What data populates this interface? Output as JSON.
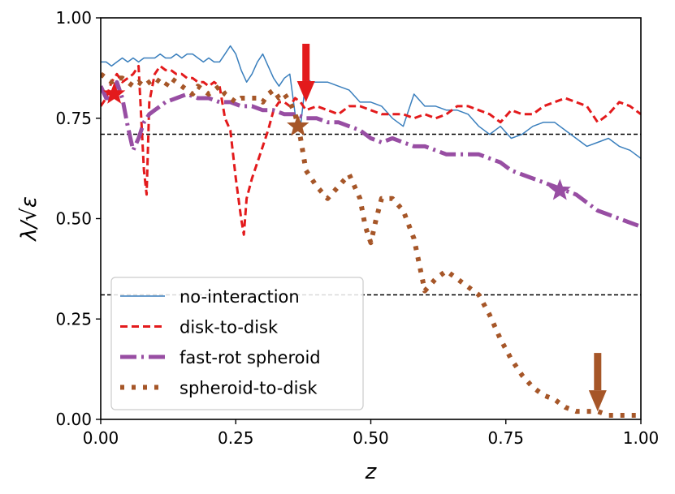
{
  "chart_data": {
    "type": "line",
    "xlabel": "z",
    "ylabel": "λ/√ε",
    "xlim": [
      0.0,
      1.0
    ],
    "ylim": [
      0.0,
      1.0
    ],
    "xticks": [
      "0.00",
      "0.25",
      "0.50",
      "0.75",
      "1.00"
    ],
    "yticks": [
      "0.00",
      "0.25",
      "0.50",
      "0.75",
      "1.00"
    ],
    "hlines": [
      0.71,
      0.31
    ],
    "legend_position": "lower-left",
    "series": [
      {
        "name": "no-interaction",
        "color": "#3a7fbd",
        "style": "solid",
        "x": [
          0.0,
          0.01,
          0.02,
          0.03,
          0.04,
          0.05,
          0.06,
          0.07,
          0.08,
          0.09,
          0.1,
          0.11,
          0.12,
          0.13,
          0.14,
          0.15,
          0.16,
          0.17,
          0.18,
          0.19,
          0.2,
          0.21,
          0.22,
          0.23,
          0.24,
          0.25,
          0.26,
          0.27,
          0.28,
          0.29,
          0.3,
          0.31,
          0.32,
          0.33,
          0.34,
          0.35,
          0.36,
          0.37,
          0.38,
          0.39,
          0.4,
          0.42,
          0.44,
          0.46,
          0.48,
          0.5,
          0.52,
          0.54,
          0.56,
          0.58,
          0.6,
          0.62,
          0.64,
          0.66,
          0.68,
          0.7,
          0.72,
          0.74,
          0.76,
          0.78,
          0.8,
          0.82,
          0.84,
          0.86,
          0.88,
          0.9,
          0.92,
          0.94,
          0.96,
          0.98,
          1.0
        ],
        "y": [
          0.89,
          0.89,
          0.88,
          0.89,
          0.9,
          0.89,
          0.9,
          0.89,
          0.9,
          0.9,
          0.9,
          0.91,
          0.9,
          0.9,
          0.91,
          0.9,
          0.91,
          0.91,
          0.9,
          0.89,
          0.9,
          0.89,
          0.89,
          0.91,
          0.93,
          0.91,
          0.87,
          0.84,
          0.86,
          0.89,
          0.91,
          0.88,
          0.85,
          0.83,
          0.85,
          0.86,
          0.76,
          0.73,
          0.85,
          0.84,
          0.84,
          0.84,
          0.83,
          0.82,
          0.79,
          0.79,
          0.78,
          0.75,
          0.73,
          0.81,
          0.78,
          0.78,
          0.77,
          0.77,
          0.76,
          0.73,
          0.71,
          0.73,
          0.7,
          0.71,
          0.73,
          0.74,
          0.74,
          0.72,
          0.7,
          0.68,
          0.69,
          0.7,
          0.68,
          0.67,
          0.65
        ]
      },
      {
        "name": "disk-to-disk",
        "color": "#e31a1c",
        "style": "dashed",
        "x": [
          0.0,
          0.01,
          0.02,
          0.03,
          0.04,
          0.05,
          0.06,
          0.07,
          0.08,
          0.085,
          0.09,
          0.1,
          0.11,
          0.12,
          0.13,
          0.14,
          0.15,
          0.16,
          0.17,
          0.18,
          0.19,
          0.2,
          0.21,
          0.22,
          0.23,
          0.24,
          0.25,
          0.26,
          0.265,
          0.27,
          0.28,
          0.29,
          0.3,
          0.31,
          0.32,
          0.33,
          0.34,
          0.35,
          0.36,
          0.37,
          0.38,
          0.4,
          0.42,
          0.44,
          0.46,
          0.48,
          0.5,
          0.52,
          0.54,
          0.56,
          0.58,
          0.6,
          0.62,
          0.64,
          0.66,
          0.68,
          0.7,
          0.72,
          0.74,
          0.76,
          0.78,
          0.8,
          0.82,
          0.84,
          0.86,
          0.88,
          0.9,
          0.92,
          0.94,
          0.96,
          0.98,
          1.0
        ],
        "y": [
          0.78,
          0.8,
          0.84,
          0.86,
          0.84,
          0.85,
          0.86,
          0.88,
          0.62,
          0.56,
          0.79,
          0.86,
          0.88,
          0.87,
          0.87,
          0.86,
          0.86,
          0.85,
          0.85,
          0.84,
          0.84,
          0.83,
          0.84,
          0.83,
          0.75,
          0.72,
          0.6,
          0.5,
          0.46,
          0.55,
          0.6,
          0.64,
          0.68,
          0.72,
          0.77,
          0.79,
          0.79,
          0.78,
          0.8,
          0.79,
          0.77,
          0.78,
          0.77,
          0.76,
          0.78,
          0.78,
          0.77,
          0.76,
          0.76,
          0.76,
          0.75,
          0.76,
          0.75,
          0.76,
          0.78,
          0.78,
          0.77,
          0.76,
          0.74,
          0.77,
          0.76,
          0.76,
          0.78,
          0.79,
          0.8,
          0.79,
          0.78,
          0.74,
          0.76,
          0.79,
          0.78,
          0.76
        ]
      },
      {
        "name": "fast-rot spheroid",
        "color": "#984ea3",
        "style": "dashdot",
        "x": [
          0.0,
          0.01,
          0.02,
          0.03,
          0.04,
          0.05,
          0.06,
          0.07,
          0.08,
          0.09,
          0.1,
          0.11,
          0.12,
          0.14,
          0.16,
          0.18,
          0.2,
          0.22,
          0.24,
          0.26,
          0.28,
          0.3,
          0.32,
          0.34,
          0.36,
          0.38,
          0.4,
          0.42,
          0.44,
          0.46,
          0.48,
          0.5,
          0.52,
          0.54,
          0.56,
          0.58,
          0.6,
          0.62,
          0.64,
          0.66,
          0.68,
          0.7,
          0.72,
          0.74,
          0.76,
          0.78,
          0.8,
          0.82,
          0.84,
          0.86,
          0.88,
          0.9,
          0.92,
          0.94,
          0.96,
          0.98,
          1.0
        ],
        "y": [
          0.83,
          0.8,
          0.8,
          0.84,
          0.8,
          0.73,
          0.67,
          0.7,
          0.74,
          0.76,
          0.77,
          0.78,
          0.79,
          0.8,
          0.81,
          0.8,
          0.8,
          0.79,
          0.79,
          0.78,
          0.78,
          0.77,
          0.77,
          0.76,
          0.76,
          0.75,
          0.75,
          0.74,
          0.74,
          0.73,
          0.72,
          0.7,
          0.69,
          0.7,
          0.69,
          0.68,
          0.68,
          0.67,
          0.66,
          0.66,
          0.66,
          0.66,
          0.65,
          0.64,
          0.62,
          0.61,
          0.6,
          0.59,
          0.58,
          0.57,
          0.56,
          0.54,
          0.52,
          0.51,
          0.5,
          0.49,
          0.48
        ]
      },
      {
        "name": "spheroid-to-disk",
        "color": "#a65628",
        "style": "dotted",
        "x": [
          0.0,
          0.01,
          0.02,
          0.03,
          0.04,
          0.05,
          0.06,
          0.07,
          0.08,
          0.09,
          0.1,
          0.11,
          0.12,
          0.13,
          0.14,
          0.15,
          0.16,
          0.17,
          0.18,
          0.19,
          0.2,
          0.21,
          0.22,
          0.23,
          0.24,
          0.25,
          0.26,
          0.27,
          0.28,
          0.29,
          0.3,
          0.31,
          0.32,
          0.33,
          0.34,
          0.35,
          0.36,
          0.37,
          0.38,
          0.4,
          0.42,
          0.44,
          0.46,
          0.48,
          0.49,
          0.5,
          0.51,
          0.52,
          0.54,
          0.56,
          0.58,
          0.6,
          0.62,
          0.64,
          0.66,
          0.68,
          0.7,
          0.72,
          0.74,
          0.76,
          0.78,
          0.8,
          0.82,
          0.84,
          0.86,
          0.88,
          0.9,
          0.92,
          0.94,
          0.96,
          0.98,
          1.0
        ],
        "y": [
          0.86,
          0.85,
          0.84,
          0.85,
          0.85,
          0.84,
          0.83,
          0.84,
          0.83,
          0.84,
          0.85,
          0.84,
          0.83,
          0.85,
          0.84,
          0.83,
          0.82,
          0.81,
          0.83,
          0.82,
          0.81,
          0.82,
          0.83,
          0.81,
          0.8,
          0.79,
          0.8,
          0.8,
          0.8,
          0.8,
          0.79,
          0.81,
          0.82,
          0.8,
          0.81,
          0.79,
          0.76,
          0.7,
          0.62,
          0.58,
          0.55,
          0.58,
          0.61,
          0.55,
          0.48,
          0.44,
          0.5,
          0.55,
          0.55,
          0.52,
          0.45,
          0.32,
          0.35,
          0.37,
          0.35,
          0.33,
          0.31,
          0.26,
          0.2,
          0.15,
          0.11,
          0.08,
          0.06,
          0.05,
          0.03,
          0.02,
          0.02,
          0.02,
          0.01,
          0.01,
          0.01,
          0.01
        ]
      }
    ],
    "star_markers": [
      {
        "series": "disk-to-disk",
        "x": 0.025,
        "y": 0.81,
        "color": "#e31a1c"
      },
      {
        "series": "spheroid-to-disk",
        "x": 0.365,
        "y": 0.73,
        "color": "#a65628"
      },
      {
        "series": "fast-rot spheroid",
        "x": 0.85,
        "y": 0.57,
        "color": "#984ea3"
      }
    ],
    "arrow_markers": [
      {
        "x": 0.38,
        "y": 0.79,
        "color": "#e31a1c"
      },
      {
        "x": 0.92,
        "y": 0.02,
        "color": "#a65628"
      }
    ]
  }
}
